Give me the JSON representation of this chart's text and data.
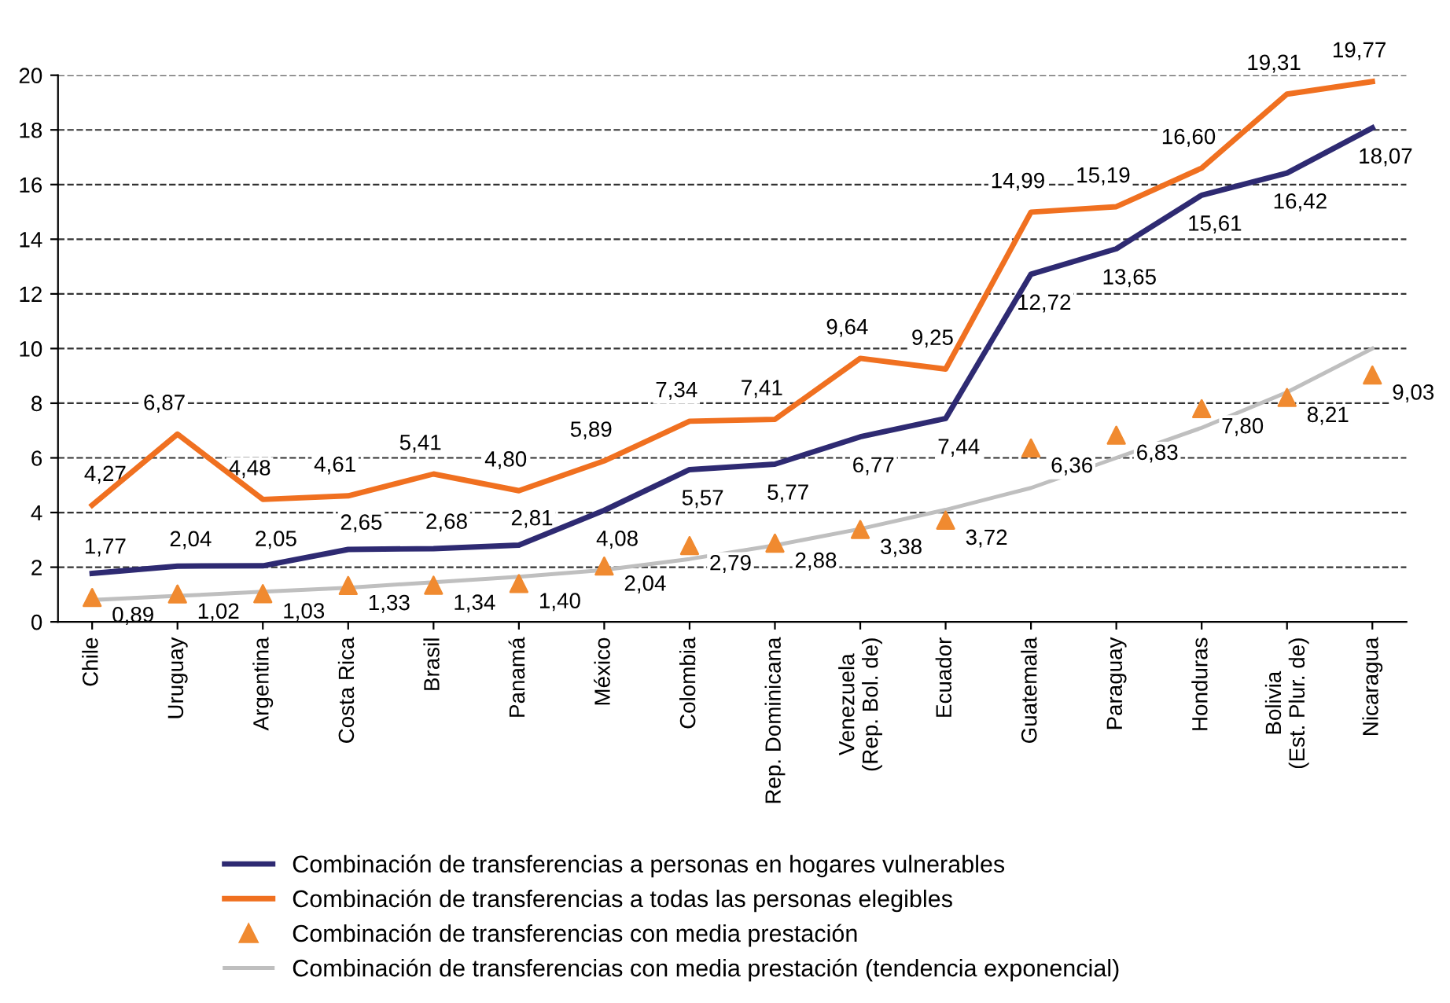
{
  "chart_data": {
    "type": "line",
    "categories": [
      "Chile",
      "Uruguay",
      "Argentina",
      "Costa Rica",
      "Brasil",
      "Panamá",
      "México",
      "Colombia",
      "Rep. Dominicana",
      "Venezuela\n(Rep. Bol. de)",
      "Ecuador",
      "Guatemala",
      "Paraguay",
      "Honduras",
      "Bolivia\n(Est. Plur. de)",
      "Nicaragua"
    ],
    "series": [
      {
        "name": "Combinación de transferencias a personas en hogares vulnerables",
        "color": "#2e2a72",
        "values": [
          1.77,
          2.04,
          2.05,
          2.65,
          2.68,
          2.81,
          4.08,
          5.57,
          5.77,
          6.77,
          7.44,
          12.72,
          13.65,
          15.61,
          16.42,
          18.07
        ],
        "value_labels": [
          "1,77",
          "2,04",
          "2,05",
          "2,65",
          "2,68",
          "2,81",
          "4,08",
          "5,57",
          "5,77",
          "6,77",
          "7,44",
          "12,72",
          "13,65",
          "15,61",
          "16,42",
          "18,07"
        ]
      },
      {
        "name": "Combinación de transferencias a todas las personas elegibles",
        "color": "#f07020",
        "values": [
          4.27,
          6.87,
          4.48,
          4.61,
          5.41,
          4.8,
          5.89,
          7.34,
          7.41,
          9.64,
          9.25,
          14.99,
          15.19,
          16.6,
          19.31,
          19.77
        ],
        "value_labels": [
          "4,27",
          "6,87",
          "4,48",
          "4,61",
          "5,41",
          "4,80",
          "5,89",
          "7,34",
          "7,41",
          "9,64",
          "9,25",
          "14,99",
          "15,19",
          "16,60",
          "19,31",
          "19,77"
        ]
      },
      {
        "name": "Combinación de transferencias con media prestación",
        "type": "scatter",
        "marker": "triangle",
        "color": "#f08a30",
        "values": [
          0.89,
          1.02,
          1.03,
          1.33,
          1.34,
          1.4,
          2.04,
          2.79,
          2.88,
          3.38,
          3.72,
          6.36,
          6.83,
          7.8,
          8.21,
          9.03
        ],
        "value_labels": [
          "0,89",
          "1,02",
          "1,03",
          "1,33",
          "1,34",
          "1,40",
          "2,04",
          "2,79",
          "2,88",
          "3,38",
          "3,72",
          "6,36",
          "6,83",
          "7,80",
          "8,21",
          "9,03"
        ]
      },
      {
        "name": "Combinación de transferencias con media prestación (tendencia exponencial)",
        "color": "#bfbfbf",
        "values": [
          0.8,
          0.95,
          1.1,
          1.25,
          1.45,
          1.65,
          1.9,
          2.3,
          2.8,
          3.4,
          4.1,
          4.9,
          6.0,
          7.1,
          8.4,
          10.0
        ]
      }
    ],
    "ylim": [
      0,
      20
    ],
    "yticks": [
      0,
      2,
      4,
      6,
      8,
      10,
      12,
      14,
      16,
      18,
      20
    ],
    "grid": "y",
    "legend": "bottom",
    "line_style": "solid"
  }
}
